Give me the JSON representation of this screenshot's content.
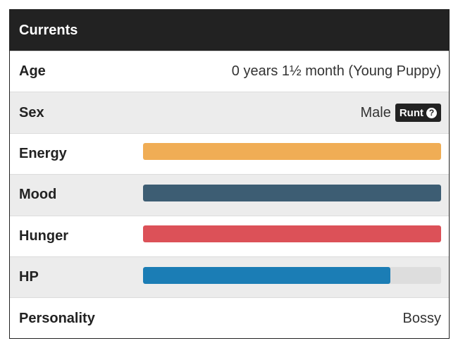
{
  "panel": {
    "title": "Currents",
    "rows": [
      {
        "label": "Age",
        "value": "0 years 1½ month (Young Puppy)"
      },
      {
        "label": "Sex",
        "value": "Male",
        "badge": "Runt",
        "badge_icon": "question-circle-icon"
      },
      {
        "label": "Energy",
        "level": 1.0,
        "color": "#f0ad55"
      },
      {
        "label": "Mood",
        "level": 1.0,
        "color": "#3d5d73"
      },
      {
        "label": "Hunger",
        "level": 1.0,
        "color": "#dc5158"
      },
      {
        "label": "HP",
        "level": 0.83,
        "color": "#1b7db5"
      },
      {
        "label": "Personality",
        "value": "Bossy"
      }
    ]
  }
}
